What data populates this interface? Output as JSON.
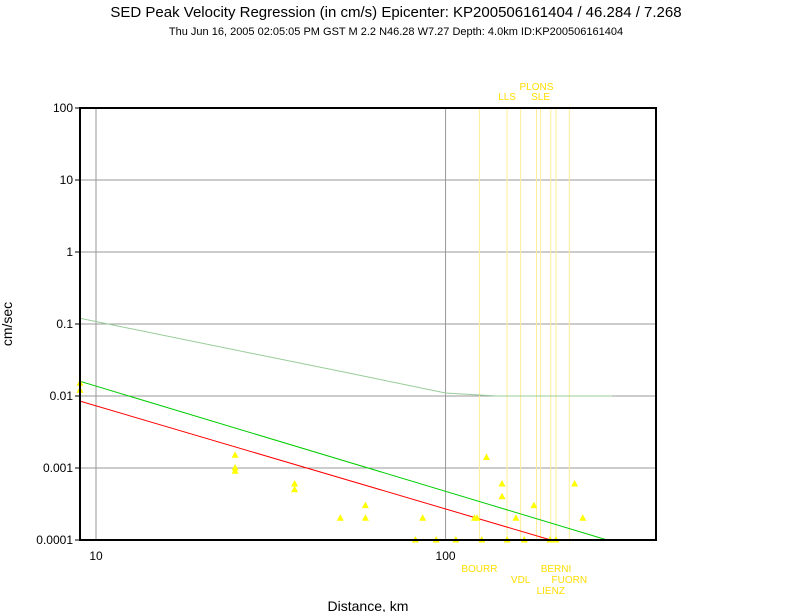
{
  "header": {
    "title": "SED Peak Velocity Regression (in cm/s) Epicenter: KP200506161404 / 46.284 / 7.268",
    "subtitle": "Thu Jun 16, 2005 02:05:05 PM GST   M 2.2   N46.28 W7.27   Depth: 4.0km   ID:KP200506161404"
  },
  "colors": {
    "points": "#ffff00",
    "station_lines": "#ffee99",
    "station_labels": "#ffdd00",
    "red_regression": "#ff0000",
    "green_regression": "#00cc00",
    "upper_curve": "#99cc99",
    "grid": "#999999"
  },
  "chart_data": {
    "type": "scatter",
    "title": "SED Peak Velocity Regression (in cm/s) Epicenter: KP200506161404 / 46.284 / 7.268",
    "xlabel": "Distance, km",
    "ylabel": "cm/sec",
    "x_scale": "log",
    "y_scale": "log",
    "xlim": [
      9,
      400
    ],
    "ylim": [
      0.0001,
      100
    ],
    "x_ticks": [
      10,
      100
    ],
    "x_tick_labels": [
      "10",
      "100"
    ],
    "y_ticks": [
      0.0001,
      0.001,
      0.01,
      0.1,
      1,
      10,
      100
    ],
    "y_tick_labels": [
      "0.0001",
      "0.001",
      "0.01",
      "0.1",
      "1",
      "10",
      "100"
    ],
    "grid": true,
    "points": [
      {
        "x": 9,
        "y": 0.015
      },
      {
        "x": 9,
        "y": 0.012
      },
      {
        "x": 25,
        "y": 0.0015
      },
      {
        "x": 25,
        "y": 0.001
      },
      {
        "x": 25,
        "y": 0.0009
      },
      {
        "x": 37,
        "y": 0.0006
      },
      {
        "x": 37,
        "y": 0.0005
      },
      {
        "x": 50,
        "y": 0.0002
      },
      {
        "x": 59,
        "y": 0.0003
      },
      {
        "x": 59,
        "y": 0.0002
      },
      {
        "x": 82,
        "y": 0.0001
      },
      {
        "x": 86,
        "y": 0.0002
      },
      {
        "x": 94,
        "y": 0.0001
      },
      {
        "x": 107,
        "y": 0.0001
      },
      {
        "x": 121,
        "y": 0.0002
      },
      {
        "x": 123,
        "y": 0.0002
      },
      {
        "x": 127,
        "y": 0.0001
      },
      {
        "x": 131,
        "y": 0.0014
      },
      {
        "x": 145,
        "y": 0.0006
      },
      {
        "x": 145,
        "y": 0.0004
      },
      {
        "x": 150,
        "y": 0.0001
      },
      {
        "x": 159,
        "y": 0.0002
      },
      {
        "x": 168,
        "y": 0.0001
      },
      {
        "x": 179,
        "y": 0.0003
      },
      {
        "x": 199,
        "y": 0.0001
      },
      {
        "x": 207,
        "y": 0.0001
      },
      {
        "x": 234,
        "y": 0.0006
      },
      {
        "x": 247,
        "y": 0.0002
      }
    ],
    "station_lines": [
      {
        "x": 125,
        "label": "BOURR",
        "position": "bottom"
      },
      {
        "x": 150,
        "label": "LLS",
        "position": "top"
      },
      {
        "x": 164,
        "label": "VDL",
        "position": "bottom"
      },
      {
        "x": 182,
        "label": "PLONS",
        "position": "top"
      },
      {
        "x": 187,
        "label": "SLE",
        "position": "top"
      },
      {
        "x": 200,
        "label": "LIENZ",
        "position": "bottom"
      },
      {
        "x": 207,
        "label": "BERNI",
        "position": "bottom"
      },
      {
        "x": 226,
        "label": "FUORN",
        "position": "bottom"
      }
    ],
    "lines": [
      {
        "color": "red",
        "points": [
          [
            9,
            0.0085
          ],
          [
            200,
            0.0001
          ]
        ]
      },
      {
        "color": "green",
        "points": [
          [
            9,
            0.016
          ],
          [
            290,
            0.0001
          ]
        ]
      },
      {
        "color": "upper",
        "points": [
          [
            9,
            0.12
          ],
          [
            55,
            0.02
          ],
          [
            100,
            0.011
          ],
          [
            140,
            0.01
          ],
          [
            300,
            0.01
          ]
        ]
      }
    ]
  }
}
